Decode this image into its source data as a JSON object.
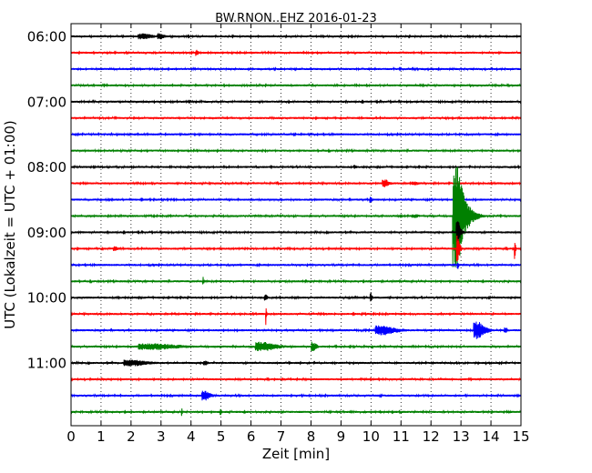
{
  "chart_data": {
    "type": "line",
    "title": "BW.RNON..EHZ 2016-01-23",
    "xlabel": "Zeit  [min]",
    "ylabel": "UTC (Lokalzeit = UTC + 01:00)",
    "xlim": [
      0,
      15
    ],
    "x_ticks": [
      "0",
      "1",
      "2",
      "3",
      "4",
      "5",
      "6",
      "7",
      "8",
      "9",
      "10",
      "11",
      "12",
      "13",
      "14",
      "15"
    ],
    "y_ticks": [
      {
        "label": "06:00",
        "row": 0
      },
      {
        "label": "07:00",
        "row": 4
      },
      {
        "label": "08:00",
        "row": 8
      },
      {
        "label": "09:00",
        "row": 12
      },
      {
        "label": "10:00",
        "row": 16
      },
      {
        "label": "11:00",
        "row": 20
      }
    ],
    "row_interval_minutes": 15,
    "row_colors": [
      "#000000",
      "#ff0000",
      "#0000ff",
      "#008000"
    ],
    "grid": {
      "x": true,
      "y": false,
      "style": "dotted"
    },
    "series": [
      {
        "start": "06:00",
        "events": [
          {
            "x": 2.5,
            "amp": 0.18,
            "width": 0.9
          },
          {
            "x": 3.0,
            "amp": 0.2,
            "width": 0.4
          }
        ]
      },
      {
        "start": "06:15",
        "events": [
          {
            "x": 4.2,
            "amp": 0.2,
            "width": 0.15
          }
        ]
      },
      {
        "start": "06:30",
        "events": []
      },
      {
        "start": "06:45",
        "events": []
      },
      {
        "start": "07:00",
        "events": []
      },
      {
        "start": "07:15",
        "events": []
      },
      {
        "start": "07:30",
        "events": []
      },
      {
        "start": "07:45",
        "events": []
      },
      {
        "start": "08:00",
        "events": [
          {
            "x": 9.5,
            "amp": 0.12,
            "width": 0.3
          }
        ]
      },
      {
        "start": "08:15",
        "events": [
          {
            "x": 10.5,
            "amp": 0.25,
            "width": 0.4
          },
          {
            "x": 11.5,
            "amp": 0.12,
            "width": 0.5
          }
        ]
      },
      {
        "start": "08:30",
        "events": [
          {
            "x": 10.0,
            "amp": 0.2,
            "width": 0.15
          }
        ]
      },
      {
        "start": "08:45",
        "events": [
          {
            "x": 12.9,
            "amp": 3.2,
            "width": 0.6
          },
          {
            "x": 11.5,
            "amp": 0.12,
            "width": 0.5
          }
        ]
      },
      {
        "start": "09:00",
        "events": [
          {
            "x": 12.9,
            "amp": 0.9,
            "width": 0.2
          }
        ]
      },
      {
        "start": "09:15",
        "events": [
          {
            "x": 12.9,
            "amp": 0.9,
            "width": 0.15
          },
          {
            "x": 14.8,
            "amp": 0.7,
            "width": 0.05
          },
          {
            "x": 1.5,
            "amp": 0.15,
            "width": 0.3
          }
        ]
      },
      {
        "start": "09:30",
        "events": [
          {
            "x": 12.9,
            "amp": 0.25,
            "width": 0.1
          }
        ]
      },
      {
        "start": "09:45",
        "events": [
          {
            "x": 4.4,
            "amp": 0.35,
            "width": 0.05
          }
        ]
      },
      {
        "start": "10:00",
        "events": [
          {
            "x": 6.5,
            "amp": 0.2,
            "width": 0.2
          },
          {
            "x": 10.0,
            "amp": 0.35,
            "width": 0.1
          }
        ]
      },
      {
        "start": "10:15",
        "events": [
          {
            "x": 6.5,
            "amp": 0.7,
            "width": 0.05
          }
        ]
      },
      {
        "start": "10:30",
        "events": [
          {
            "x": 10.5,
            "amp": 0.3,
            "width": 1.2
          },
          {
            "x": 13.6,
            "amp": 0.55,
            "width": 0.6
          },
          {
            "x": 14.5,
            "amp": 0.2,
            "width": 0.2
          }
        ]
      },
      {
        "start": "10:45",
        "events": [
          {
            "x": 3.0,
            "amp": 0.2,
            "width": 2.5
          },
          {
            "x": 6.5,
            "amp": 0.3,
            "width": 1.2
          },
          {
            "x": 8.1,
            "amp": 0.3,
            "width": 0.3
          }
        ]
      },
      {
        "start": "11:00",
        "events": [
          {
            "x": 2.2,
            "amp": 0.2,
            "width": 1.5
          },
          {
            "x": 4.5,
            "amp": 0.15,
            "width": 0.3
          }
        ]
      },
      {
        "start": "11:15",
        "events": []
      },
      {
        "start": "11:30",
        "events": [
          {
            "x": 4.5,
            "amp": 0.3,
            "width": 0.5
          }
        ]
      },
      {
        "start": "11:45",
        "events": [
          {
            "x": 3.7,
            "amp": 0.25,
            "width": 0.05
          },
          {
            "x": 5.0,
            "amp": 0.2,
            "width": 0.1
          }
        ]
      }
    ]
  }
}
